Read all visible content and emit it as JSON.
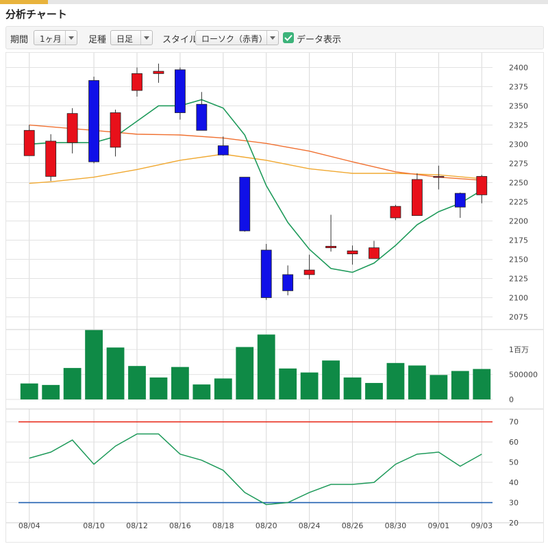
{
  "panel_title": "分析チャート",
  "toolbar": {
    "period_label": "期間",
    "period_value": "1ヶ月",
    "candle_label": "足種",
    "candle_value": "日足",
    "style_label": "スタイル",
    "style_value": "ローソク（赤青）",
    "show_data_label": "データ表示",
    "show_data_checked": true
  },
  "colors": {
    "up": "#e8101a",
    "down": "#1010e8",
    "ma_short": "#1e9a5a",
    "ma_mid": "#f07030",
    "ma_long": "#f0a830",
    "volume": "#0f8a46",
    "rsi": "#1e9a5a",
    "rsi_upper": "#e83020",
    "rsi_lower": "#1f5fb0",
    "accent": "#e8b33c"
  },
  "chart_data": {
    "type": "candlestick",
    "x_tick_labels": [
      "08/04",
      "08/10",
      "08/12",
      "08/16",
      "08/18",
      "08/20",
      "08/24",
      "08/26",
      "08/30",
      "09/01",
      "09/03"
    ],
    "x_tick_index": [
      0,
      3,
      5,
      7,
      9,
      11,
      13,
      15,
      17,
      19,
      21
    ],
    "price": {
      "ylim": [
        2062,
        2412
      ],
      "ticks": [
        2075,
        2100,
        2125,
        2150,
        2175,
        2200,
        2225,
        2250,
        2275,
        2300,
        2325,
        2350,
        2375,
        2400
      ],
      "ohlc": [
        {
          "o": 2285,
          "h": 2325,
          "l": 2285,
          "c": 2318
        },
        {
          "o": 2258,
          "h": 2313,
          "l": 2252,
          "c": 2304
        },
        {
          "o": 2302,
          "h": 2347,
          "l": 2288,
          "c": 2340
        },
        {
          "o": 2383,
          "h": 2388,
          "l": 2275,
          "c": 2277
        },
        {
          "o": 2296,
          "h": 2345,
          "l": 2284,
          "c": 2341
        },
        {
          "o": 2370,
          "h": 2400,
          "l": 2362,
          "c": 2392
        },
        {
          "o": 2392,
          "h": 2405,
          "l": 2380,
          "c": 2395
        },
        {
          "o": 2397,
          "h": 2400,
          "l": 2332,
          "c": 2341
        },
        {
          "o": 2352,
          "h": 2368,
          "l": 2318,
          "c": 2318
        },
        {
          "o": 2298,
          "h": 2310,
          "l": 2285,
          "c": 2286
        },
        {
          "o": 2257,
          "h": 2257,
          "l": 2186,
          "c": 2187
        },
        {
          "o": 2162,
          "h": 2170,
          "l": 2097,
          "c": 2100
        },
        {
          "o": 2130,
          "h": 2142,
          "l": 2103,
          "c": 2109
        },
        {
          "o": 2130,
          "h": 2156,
          "l": 2124,
          "c": 2136
        },
        {
          "o": 2165,
          "h": 2208,
          "l": 2160,
          "c": 2167
        },
        {
          "o": 2157,
          "h": 2168,
          "l": 2143,
          "c": 2161
        },
        {
          "o": 2151,
          "h": 2174,
          "l": 2151,
          "c": 2165
        },
        {
          "o": 2204,
          "h": 2221,
          "l": 2201,
          "c": 2219
        },
        {
          "o": 2207,
          "h": 2262,
          "l": 2207,
          "c": 2254
        },
        {
          "o": 2258,
          "h": 2272,
          "l": 2241,
          "c": 2258
        },
        {
          "o": 2236,
          "h": 2237,
          "l": 2204,
          "c": 2218
        },
        {
          "o": 2234,
          "h": 2260,
          "l": 2223,
          "c": 2258
        }
      ],
      "ma_short": [
        [
          0,
          2300
        ],
        [
          1,
          2302
        ],
        [
          3,
          2302
        ],
        [
          4,
          2310
        ],
        [
          5,
          2330
        ],
        [
          6,
          2350
        ],
        [
          7,
          2350
        ],
        [
          8,
          2358
        ],
        [
          9,
          2347
        ],
        [
          10,
          2312
        ],
        [
          11,
          2246
        ],
        [
          12,
          2198
        ],
        [
          13,
          2163
        ],
        [
          14,
          2138
        ],
        [
          15,
          2133
        ],
        [
          16,
          2145
        ],
        [
          17,
          2168
        ],
        [
          18,
          2195
        ],
        [
          19,
          2212
        ],
        [
          20,
          2223
        ],
        [
          21,
          2240
        ]
      ],
      "ma_mid": [
        [
          0,
          2325
        ],
        [
          3,
          2318
        ],
        [
          5,
          2313
        ],
        [
          7,
          2312
        ],
        [
          9,
          2308
        ],
        [
          11,
          2301
        ],
        [
          13,
          2291
        ],
        [
          15,
          2277
        ],
        [
          17,
          2264
        ],
        [
          19,
          2257
        ],
        [
          21,
          2253
        ]
      ],
      "ma_long": [
        [
          0,
          2249
        ],
        [
          1,
          2251
        ],
        [
          3,
          2257
        ],
        [
          5,
          2267
        ],
        [
          7,
          2279
        ],
        [
          9,
          2287
        ],
        [
          11,
          2279
        ],
        [
          13,
          2268
        ],
        [
          15,
          2262
        ],
        [
          17,
          2262
        ],
        [
          19,
          2260
        ],
        [
          21,
          2255
        ]
      ]
    },
    "volume": {
      "ylim": [
        0,
        1400000
      ],
      "ticks": [
        0,
        500000,
        1000000
      ],
      "tick_labels": [
        "0",
        "500000",
        "1百万"
      ],
      "values": [
        320000,
        290000,
        630000,
        1390000,
        1040000,
        670000,
        440000,
        650000,
        300000,
        420000,
        1050000,
        1300000,
        620000,
        540000,
        780000,
        440000,
        330000,
        730000,
        680000,
        490000,
        570000,
        610000
      ]
    },
    "rsi": {
      "ylim": [
        20,
        75
      ],
      "ticks": [
        20,
        30,
        40,
        50,
        60,
        70
      ],
      "upper": 70,
      "lower": 30,
      "values": [
        [
          0,
          52
        ],
        [
          1,
          55
        ],
        [
          2,
          61
        ],
        [
          3,
          49
        ],
        [
          4,
          58
        ],
        [
          5,
          64
        ],
        [
          6,
          64
        ],
        [
          7,
          54
        ],
        [
          8,
          51
        ],
        [
          9,
          46
        ],
        [
          10,
          35
        ],
        [
          11,
          29
        ],
        [
          12,
          30
        ],
        [
          13,
          35
        ],
        [
          14,
          39
        ],
        [
          15,
          39
        ],
        [
          16,
          40
        ],
        [
          17,
          49
        ],
        [
          18,
          54
        ],
        [
          19,
          55
        ],
        [
          20,
          48
        ],
        [
          21,
          54
        ]
      ]
    }
  }
}
